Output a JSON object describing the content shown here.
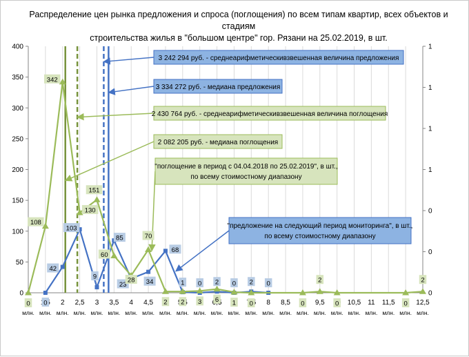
{
  "title_line1": "Распределение цен рынка предложения и спроса (поглощения) по всем типам квартир, всех объектов и стадиям",
  "title_line2": "строительства жилья в \"большом центре\" гор. Рязани  на 25.02.2019, в шт.",
  "chart_data": {
    "type": "line",
    "x_categories": [
      "1",
      "1,5",
      "2",
      "2,5",
      "3",
      "3,5",
      "4",
      "4,5",
      "5",
      "5,5",
      "6",
      "6,5",
      "7",
      "7,5",
      "8",
      "8,5",
      "9",
      "9,5",
      "10",
      "10,5",
      "11",
      "11,5",
      "12",
      "12,5"
    ],
    "x_unit": "млн.",
    "y_left_ticks": [
      "0",
      "50",
      "100",
      "150",
      "200",
      "250",
      "300",
      "350",
      "400"
    ],
    "y_right_ticks": [
      "0",
      "0",
      "0",
      "1",
      "1",
      "1",
      "1"
    ],
    "ylim": [
      0,
      400
    ],
    "grid": "vertical",
    "series": [
      {
        "key": "supply",
        "color": "#4472c4",
        "label_fill": "#b8cce4",
        "marker": "square",
        "points": [
          {
            "x": 1.5,
            "y": 0,
            "label": "0"
          },
          {
            "x": 2,
            "y": 42,
            "label": "42"
          },
          {
            "x": 2.5,
            "y": 103,
            "label": "103"
          },
          {
            "x": 3,
            "y": 9,
            "label": "9"
          },
          {
            "x": 3.5,
            "y": 85,
            "label": "85"
          },
          {
            "x": 4,
            "y": 23,
            "label": "23"
          },
          {
            "x": 4.5,
            "y": 34,
            "label": "34"
          },
          {
            "x": 5,
            "y": 68,
            "label": "68"
          },
          {
            "x": 5.5,
            "y": 1,
            "label": "1"
          },
          {
            "x": 6,
            "y": 0,
            "label": "0"
          },
          {
            "x": 6.5,
            "y": 2,
            "label": "2"
          },
          {
            "x": 7,
            "y": 0,
            "label": "0"
          },
          {
            "x": 7.5,
            "y": 2,
            "label": "2"
          },
          {
            "x": 8,
            "y": 0,
            "label": "0"
          }
        ]
      },
      {
        "key": "absorption",
        "color": "#9bbb59",
        "label_fill": "#d7e4bd",
        "marker": "triangle",
        "points": [
          {
            "x": 1,
            "y": 0,
            "label": "0"
          },
          {
            "x": 1.5,
            "y": 108,
            "label": "108"
          },
          {
            "x": 2,
            "y": 342,
            "label": "342"
          },
          {
            "x": 2.5,
            "y": 130,
            "label": "130"
          },
          {
            "x": 3,
            "y": 151,
            "label": "151"
          },
          {
            "x": 3.5,
            "y": 60,
            "label": "60"
          },
          {
            "x": 4,
            "y": 28,
            "label": "28"
          },
          {
            "x": 4.5,
            "y": 70,
            "label": "70"
          },
          {
            "x": 5,
            "y": 2,
            "label": "2"
          },
          {
            "x": 5.5,
            "y": 2,
            "label": "2"
          },
          {
            "x": 6,
            "y": 3,
            "label": "3"
          },
          {
            "x": 6.5,
            "y": 6,
            "label": "6"
          },
          {
            "x": 7,
            "y": 1,
            "label": "1"
          },
          {
            "x": 7.5,
            "y": 0,
            "label": "0"
          },
          {
            "x": 9,
            "y": 0,
            "label": "0"
          },
          {
            "x": 9.5,
            "y": 2,
            "label": "2"
          },
          {
            "x": 10,
            "y": 0,
            "label": "0"
          },
          {
            "x": 12,
            "y": 0,
            "label": "0"
          },
          {
            "x": 12.5,
            "y": 2,
            "label": "2"
          }
        ]
      }
    ],
    "vertical_lines": [
      {
        "x": 3.2,
        "color": "#4472c4",
        "dash": true
      },
      {
        "x": 3.34,
        "color": "#4472c4",
        "dash": false
      },
      {
        "x": 2.43,
        "color": "#77933c",
        "dash": true
      },
      {
        "x": 2.08,
        "color": "#77933c",
        "dash": false
      }
    ],
    "annotations": [
      {
        "text": [
          "3 242 294 руб. - среднеарифметическивзвешенная величина предложения"
        ],
        "style": "blue",
        "arrow_to": {
          "x": 3.2,
          "y": 375
        }
      },
      {
        "text": [
          "3 334 272 руб. - медиана предложения"
        ],
        "style": "blue",
        "arrow_to": {
          "x": 3.34,
          "y": 325
        }
      },
      {
        "text": [
          "2 430 764 руб. - среднеарифметическивзвешенная величина поглощения"
        ],
        "style": "green",
        "arrow_to": {
          "x": 2.43,
          "y": 285
        }
      },
      {
        "text": [
          "2 082 205 руб. - медиана поглощения"
        ],
        "style": "green",
        "arrow_to": {
          "x": 2.08,
          "y": 182
        }
      },
      {
        "text": [
          "\"поглощение в период с 04.04.2018 по 25.02.2019\", в шт.,",
          "по всему стоимостному диапазону"
        ],
        "style": "green",
        "arrow_to": {
          "x": 4.6,
          "y": 68
        }
      },
      {
        "text": [
          "\"предложение на следующий период мониторинга\", в шт.,",
          "по всему стоимостному диапазону"
        ],
        "style": "blue",
        "arrow_to": {
          "x": 5.3,
          "y": 35
        }
      }
    ]
  }
}
